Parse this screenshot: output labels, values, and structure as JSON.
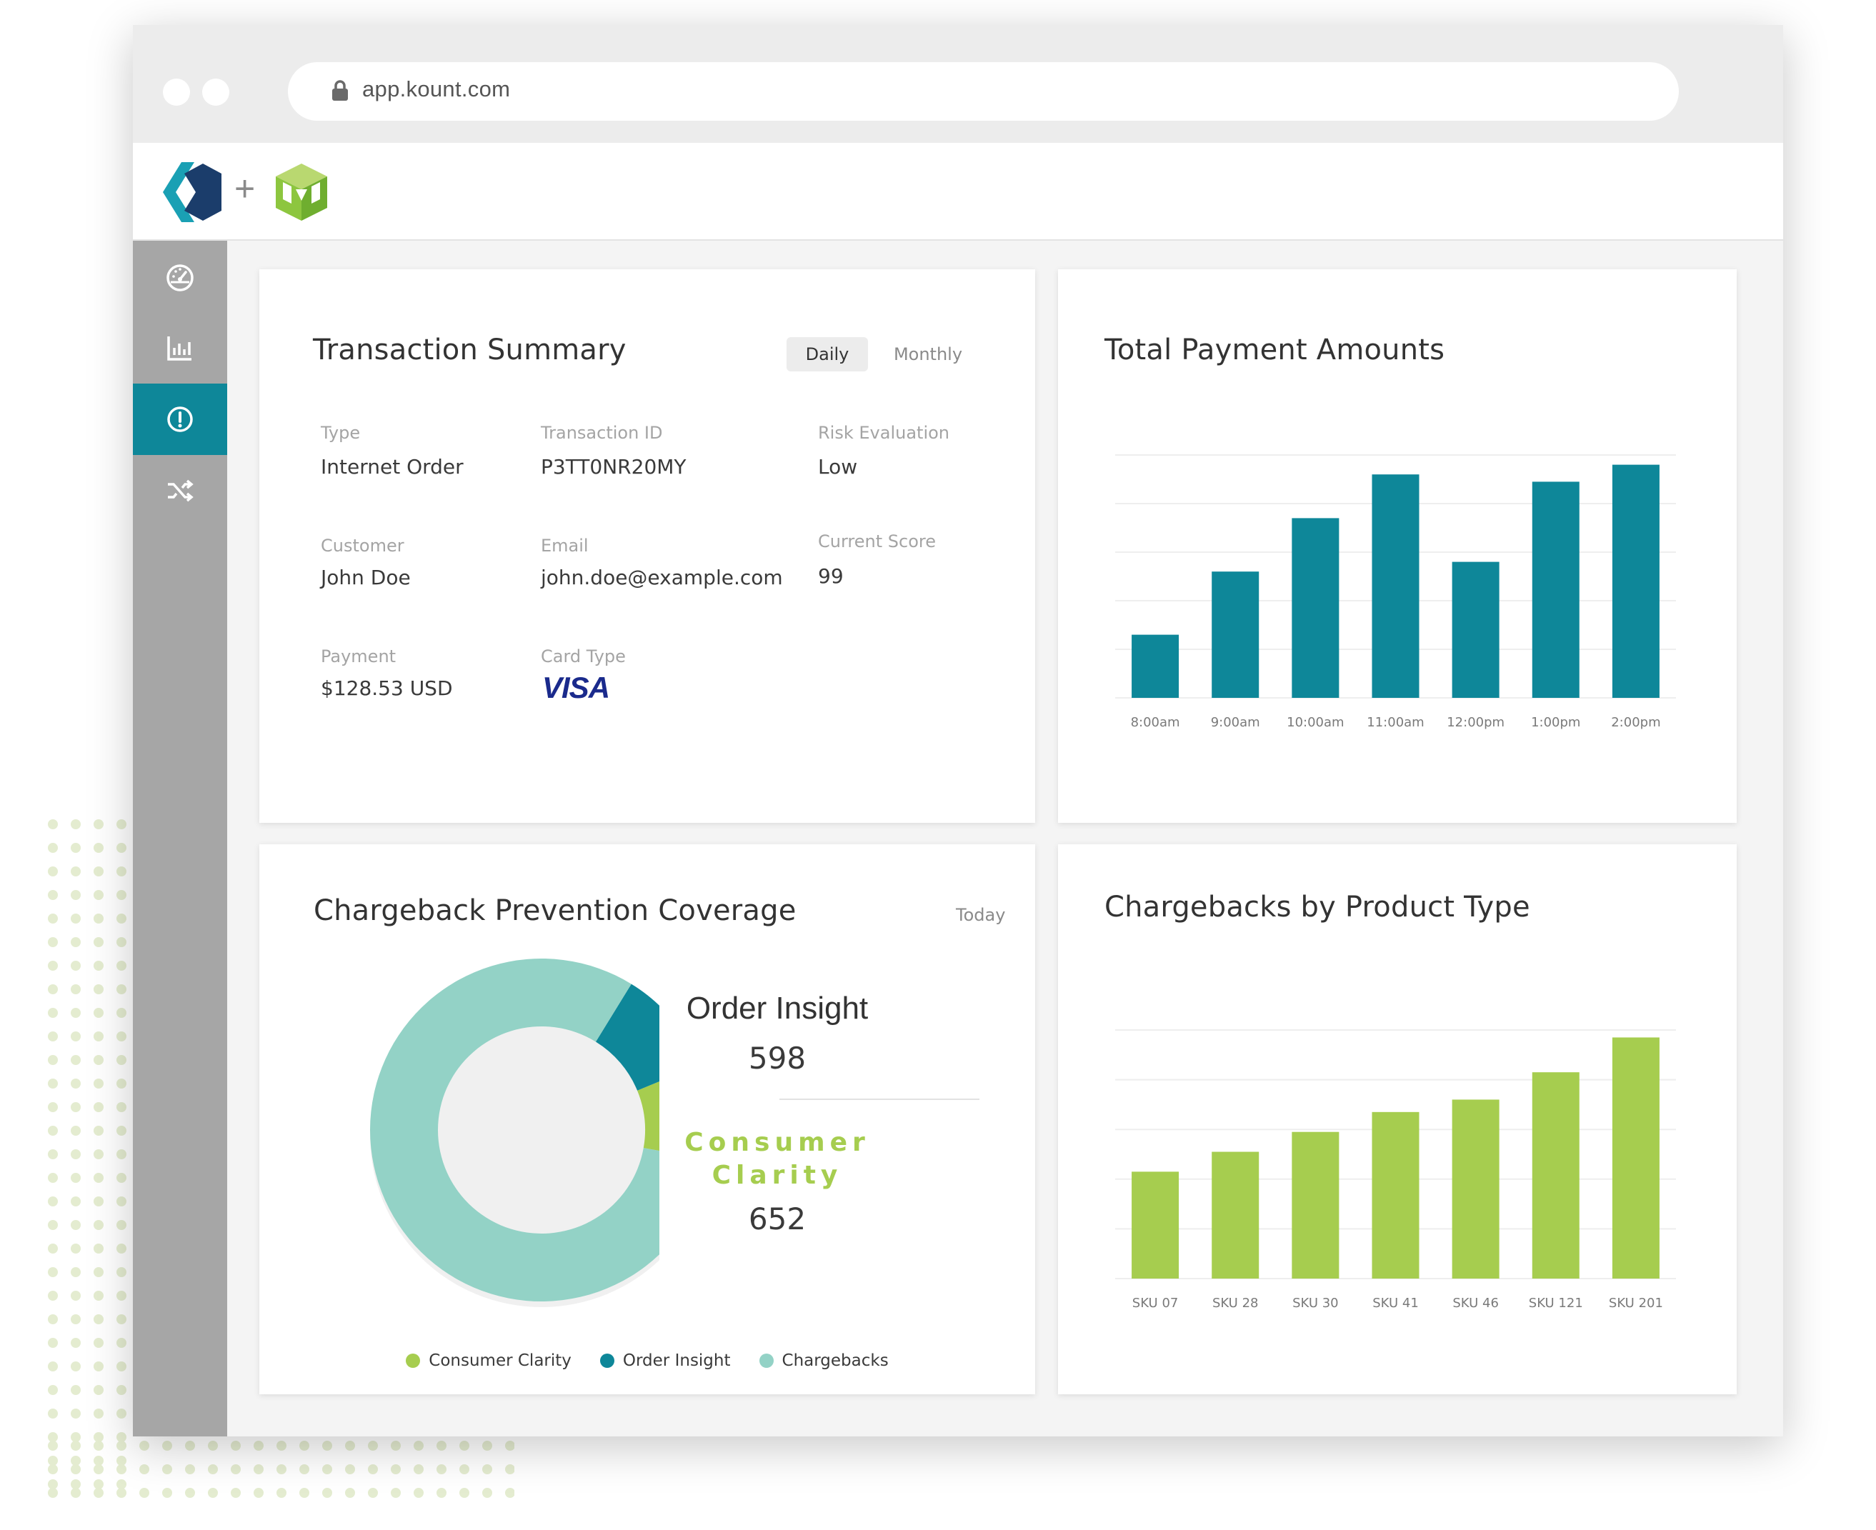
{
  "browser": {
    "url": "app.kount.com"
  },
  "header": {
    "plus_sign": "+"
  },
  "sidebar": {
    "items": [
      {
        "icon": "dashboard-gauge-icon",
        "active": false
      },
      {
        "icon": "bar-chart-icon",
        "active": false
      },
      {
        "icon": "alert-circle-icon",
        "active": true
      },
      {
        "icon": "shuffle-icon",
        "active": false
      }
    ]
  },
  "transaction_summary": {
    "title": "Transaction Summary",
    "toggle": {
      "daily": "Daily",
      "monthly": "Monthly",
      "selected": "Daily"
    },
    "fields": {
      "type_label": "Type",
      "type_value": "Internet Order",
      "txid_label": "Transaction ID",
      "txid_value": "P3TT0NR20MY",
      "risk_label": "Risk Evaluation",
      "risk_value": "Low",
      "customer_label": "Customer",
      "customer_value": "John Doe",
      "email_label": "Email",
      "email_value": "john.doe@example.com",
      "score_label": "Current Score",
      "score_value": "99",
      "payment_label": "Payment",
      "payment_value": "$128.53 USD",
      "card_label": "Card Type",
      "card_value": "VISA"
    }
  },
  "payment_chart": {
    "title": "Total Payment Amounts"
  },
  "coverage": {
    "title": "Chargeback Prevention Coverage",
    "period": "Today",
    "order_insight_label": "Order Insight",
    "order_insight_value": "598",
    "consumer_clarity_label": "Consumer Clarity",
    "consumer_clarity_value": "652"
  },
  "product_chart": {
    "title": "Chargebacks by Product Type"
  },
  "colors": {
    "teal": "#0e8799",
    "green": "#a6cd4f",
    "mint": "#93d2c6",
    "sidebar": "#a6a6a6"
  },
  "chart_data": [
    {
      "type": "bar",
      "title": "Total Payment Amounts",
      "categories": [
        "8:00am",
        "9:00am",
        "10:00am",
        "11:00am",
        "12:00pm",
        "1:00pm",
        "2:00pm"
      ],
      "values": [
        26,
        52,
        74,
        92,
        56,
        89,
        96
      ],
      "ylim": [
        0,
        100
      ],
      "grid": true,
      "color": "#0e8799"
    },
    {
      "type": "bar",
      "title": "Chargebacks by Product Type",
      "categories": [
        "SKU 07",
        "SKU 28",
        "SKU 30",
        "SKU 41",
        "SKU 46",
        "SKU 121",
        "SKU 201"
      ],
      "values": [
        43,
        51,
        59,
        67,
        72,
        83,
        97
      ],
      "ylim": [
        0,
        100
      ],
      "grid": true,
      "color": "#a6cd4f"
    },
    {
      "type": "pie",
      "title": "Chargeback Prevention Coverage",
      "categories": [
        "Consumer Clarity",
        "Order Insight",
        "Chargebacks"
      ],
      "values": [
        9,
        10,
        81
      ],
      "donut": true,
      "colors": [
        "#a6cd4f",
        "#0e8799",
        "#93d2c6"
      ],
      "legend": "bottom"
    }
  ]
}
